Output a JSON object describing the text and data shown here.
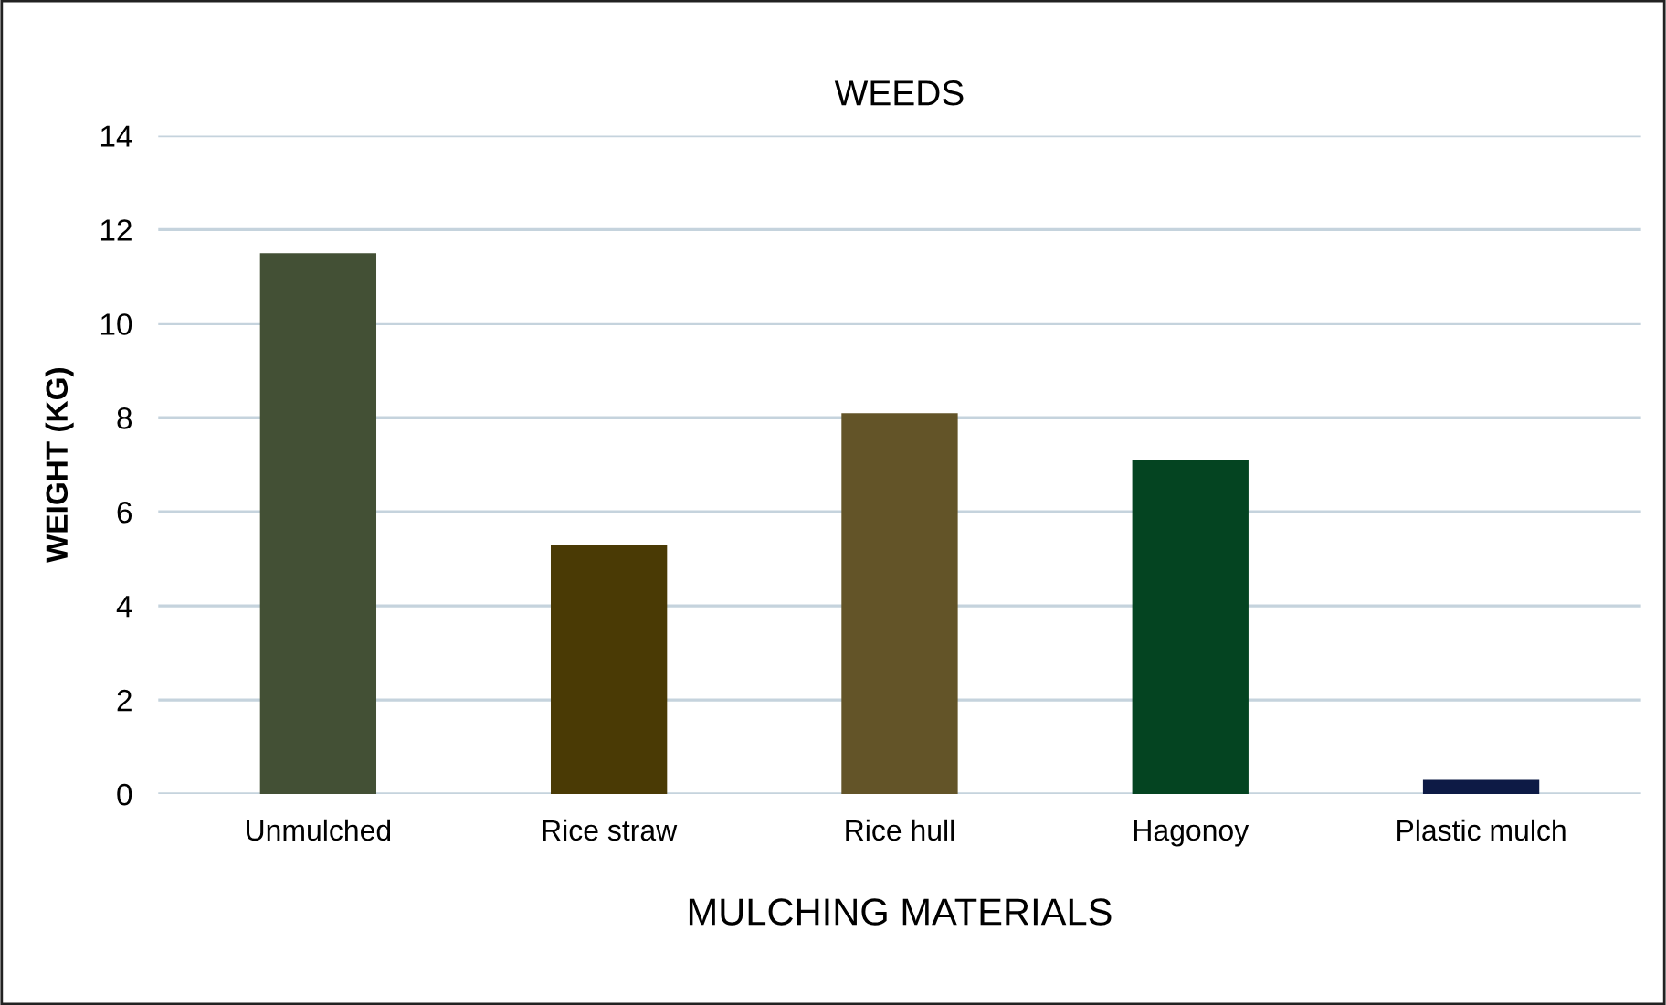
{
  "chart_data": {
    "type": "bar",
    "title": "WEEDS",
    "xlabel": "MULCHING MATERIALS",
    "ylabel": "WEIGHT (KG)",
    "categories": [
      "Unmulched",
      "Rice straw",
      "Rice hull",
      "Hagonoy",
      "Plastic mulch"
    ],
    "values": [
      11.5,
      5.3,
      8.1,
      7.1,
      0.3
    ],
    "colors": [
      "#435035",
      "#4a3a05",
      "#635428",
      "#044421",
      "#0d1a45"
    ],
    "ylim": [
      0,
      14
    ],
    "yticks": [
      0,
      2,
      4,
      6,
      8,
      10,
      12,
      14
    ],
    "grid": "y"
  }
}
